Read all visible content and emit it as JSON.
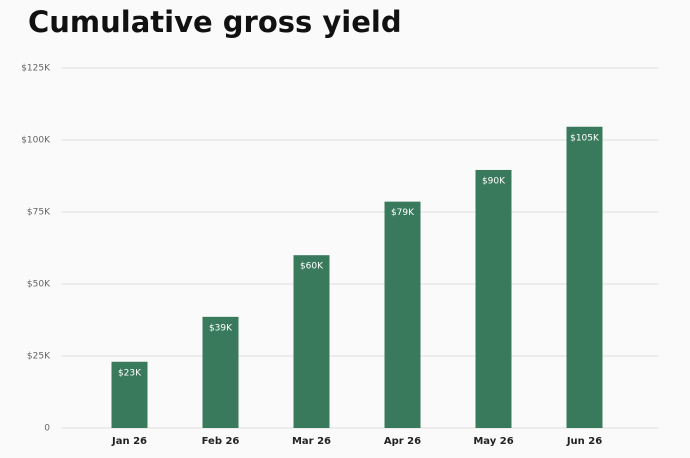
{
  "chart_data": {
    "type": "bar",
    "title": "Cumulative gross yield",
    "categories": [
      "Jan 26",
      "Feb 26",
      "Mar 26",
      "Apr 26",
      "May 26",
      "Jun 26"
    ],
    "values": [
      23000,
      38600,
      60000,
      78600,
      89600,
      104600
    ],
    "value_labels": [
      "$23K",
      "$39K",
      "$60K",
      "$79K",
      "$90K",
      "$105K"
    ],
    "color": "#3a7a5c",
    "ylim": [
      0,
      125000
    ],
    "yticks": [
      0,
      {
        "value": 25000,
        "label": "$25K"
      },
      {
        "value": 50000,
        "label": "$50K"
      },
      {
        "value": 75000,
        "label": "$75K"
      },
      {
        "value": 100000,
        "label": "$100K"
      },
      {
        "value": 125000,
        "label": "$125K"
      }
    ],
    "grid": true
  }
}
